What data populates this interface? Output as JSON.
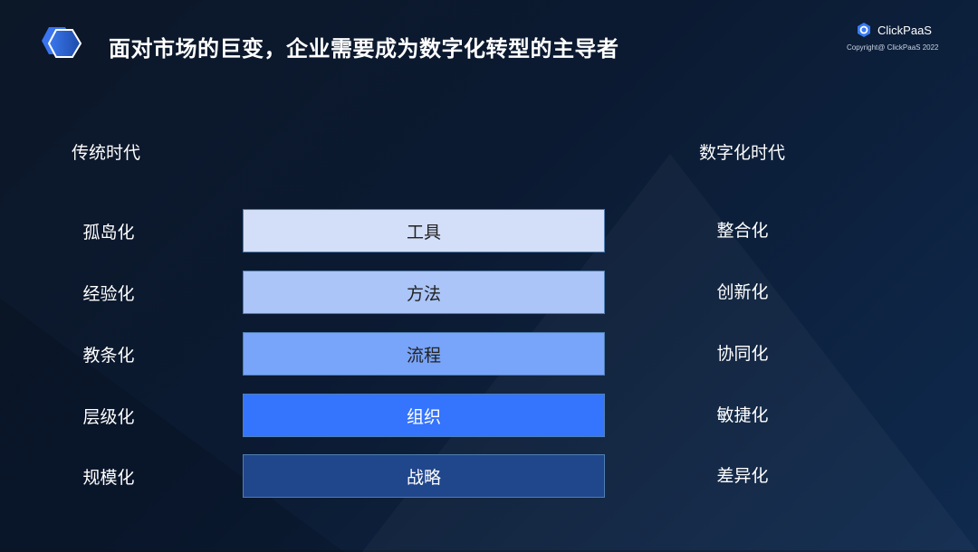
{
  "title": "面对市场的巨变，企业需要成为数字化转型的主导者",
  "brand": {
    "name": "ClickPaaS",
    "copyright": "Copyright@ ClickPaaS 2022"
  },
  "left_header": "传统时代",
  "right_header": "数字化时代",
  "rows": [
    {
      "left": "孤岛化",
      "center": "工具",
      "right": "整合化",
      "color": "#d3def8",
      "text_color": "#222222"
    },
    {
      "left": "经验化",
      "center": "方法",
      "right": "创新化",
      "color": "#abc5f8",
      "text_color": "#222222"
    },
    {
      "left": "教条化",
      "center": "流程",
      "right": "协同化",
      "color": "#78a4f9",
      "text_color": "#222222"
    },
    {
      "left": "层级化",
      "center": "组织",
      "right": "敏捷化",
      "color": "#3574fd",
      "text_color": "#ffffff"
    },
    {
      "left": "规模化",
      "center": "战略",
      "right": "差异化",
      "color": "#20468c",
      "text_color": "#ffffff"
    }
  ]
}
